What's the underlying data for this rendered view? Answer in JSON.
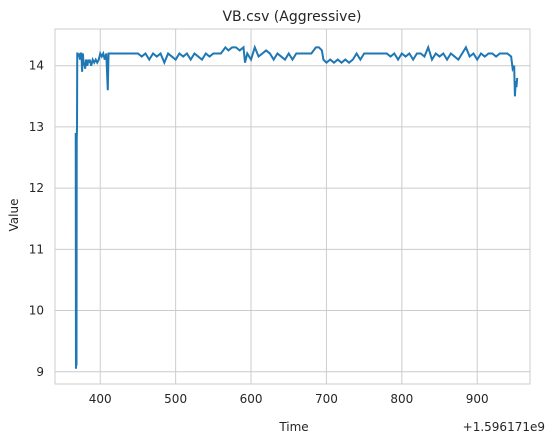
{
  "chart_data": {
    "type": "line",
    "title": "VB.csv (Aggressive)",
    "xlabel": "Time",
    "ylabel": "Value",
    "x_offset_label": "+1.596171e9",
    "xlim": [
      340,
      970
    ],
    "ylim": [
      8.8,
      14.6
    ],
    "x_ticks": [
      400,
      500,
      600,
      700,
      800,
      900
    ],
    "y_ticks": [
      9,
      10,
      11,
      12,
      13,
      14
    ],
    "grid": true,
    "legend": "none",
    "line_color": "#1f77b4",
    "series": [
      {
        "x": [
          367.5,
          367.8,
          368.2,
          368.5,
          368.8,
          369.2,
          369.5,
          370,
          371,
          372,
          373,
          374,
          375,
          376,
          377,
          378,
          379,
          380,
          381,
          382,
          383,
          384,
          385,
          386,
          388,
          390,
          392,
          394,
          396,
          398,
          400,
          402,
          404,
          406,
          408,
          410,
          411,
          412,
          414,
          420,
          430,
          440,
          450,
          455,
          460,
          465,
          470,
          475,
          480,
          485,
          490,
          495,
          500,
          505,
          510,
          515,
          520,
          525,
          530,
          535,
          540,
          545,
          550,
          560,
          566,
          570,
          575,
          580,
          585,
          590,
          592,
          595,
          600,
          605,
          610,
          615,
          620,
          625,
          630,
          635,
          640,
          645,
          650,
          655,
          660,
          670,
          680,
          686,
          690,
          694,
          696,
          700,
          705,
          710,
          715,
          720,
          725,
          730,
          735,
          740,
          745,
          750,
          760,
          770,
          780,
          785,
          790,
          795,
          800,
          805,
          810,
          815,
          820,
          825,
          830,
          835,
          840,
          845,
          850,
          855,
          860,
          865,
          870,
          875,
          880,
          885,
          890,
          895,
          900,
          905,
          910,
          915,
          920,
          925,
          930,
          935,
          940,
          945,
          947,
          949,
          950,
          951,
          952,
          953
        ],
        "y": [
          12.9,
          9.05,
          11.2,
          9.1,
          12.8,
          13.0,
          14.2,
          14.2,
          14.15,
          14.2,
          14.1,
          14.2,
          14.2,
          13.9,
          14.2,
          14.0,
          14.05,
          13.95,
          14.1,
          14.05,
          14.0,
          14.1,
          14.05,
          14.1,
          14.0,
          14.1,
          14.05,
          14.1,
          14.05,
          14.1,
          14.2,
          14.15,
          14.2,
          14.1,
          14.2,
          13.6,
          14.2,
          14.2,
          14.2,
          14.2,
          14.2,
          14.2,
          14.2,
          14.15,
          14.2,
          14.1,
          14.2,
          14.15,
          14.2,
          14.05,
          14.2,
          14.15,
          14.1,
          14.2,
          14.15,
          14.2,
          14.1,
          14.2,
          14.15,
          14.1,
          14.2,
          14.15,
          14.2,
          14.2,
          14.3,
          14.25,
          14.3,
          14.3,
          14.25,
          14.3,
          14.05,
          14.2,
          14.1,
          14.3,
          14.15,
          14.2,
          14.25,
          14.2,
          14.1,
          14.2,
          14.15,
          14.1,
          14.2,
          14.1,
          14.2,
          14.2,
          14.2,
          14.3,
          14.3,
          14.25,
          14.1,
          14.05,
          14.1,
          14.05,
          14.1,
          14.05,
          14.1,
          14.05,
          14.1,
          14.2,
          14.1,
          14.2,
          14.2,
          14.2,
          14.2,
          14.15,
          14.2,
          14.1,
          14.2,
          14.15,
          14.2,
          14.1,
          14.2,
          14.2,
          14.15,
          14.3,
          14.1,
          14.2,
          14.15,
          14.2,
          14.1,
          14.2,
          14.15,
          14.1,
          14.2,
          14.3,
          14.15,
          14.2,
          14.1,
          14.2,
          14.15,
          14.2,
          14.2,
          14.15,
          14.2,
          14.2,
          14.2,
          14.15,
          13.95,
          14.0,
          13.5,
          13.75,
          13.65,
          13.8
        ]
      }
    ]
  }
}
